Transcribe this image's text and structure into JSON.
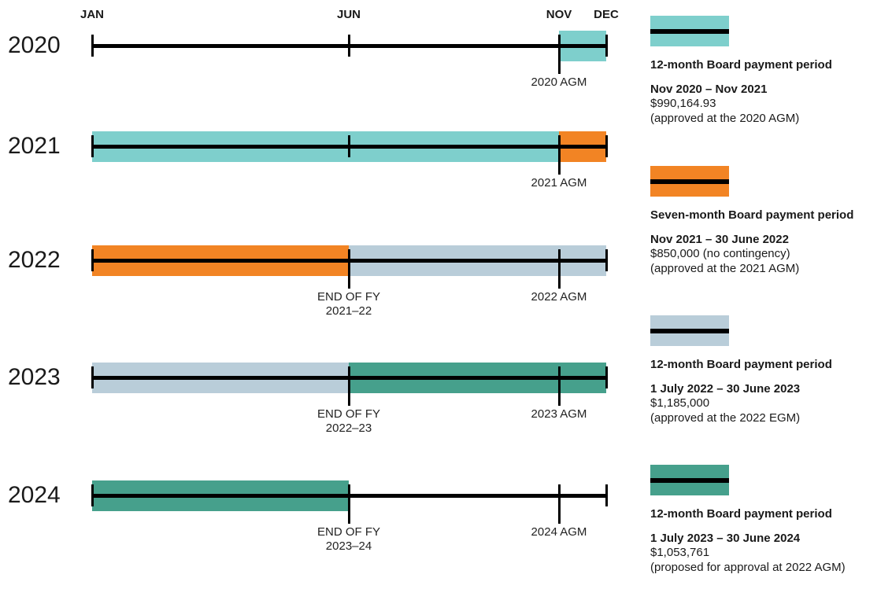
{
  "months": [
    "JAN",
    "JUN",
    "NOV",
    "DEC"
  ],
  "colors": {
    "teal": "#7ecfcc",
    "orange": "#f28424",
    "grey": "#b9cdd9",
    "green": "#46a08c"
  },
  "rows": [
    {
      "year": "2020",
      "segments": [
        {
          "from": "NOV",
          "to": "DEC",
          "color": "teal"
        }
      ],
      "markers": [
        {
          "at": "JUN",
          "label": ""
        },
        {
          "at": "NOV",
          "label": "2020 AGM"
        }
      ]
    },
    {
      "year": "2021",
      "segments": [
        {
          "from": "JAN",
          "to": "NOV",
          "color": "teal"
        },
        {
          "from": "NOV",
          "to": "DEC",
          "color": "orange"
        }
      ],
      "markers": [
        {
          "at": "JUN",
          "label": ""
        },
        {
          "at": "NOV",
          "label": "2021 AGM"
        }
      ]
    },
    {
      "year": "2022",
      "segments": [
        {
          "from": "JAN",
          "to": "JUN",
          "color": "orange"
        },
        {
          "from": "JUN",
          "to": "DEC",
          "color": "grey"
        }
      ],
      "markers": [
        {
          "at": "JUN",
          "label": "END OF FY\n2021–22"
        },
        {
          "at": "NOV",
          "label": "2022 AGM"
        }
      ]
    },
    {
      "year": "2023",
      "segments": [
        {
          "from": "JAN",
          "to": "JUN",
          "color": "grey"
        },
        {
          "from": "JUN",
          "to": "DEC",
          "color": "green"
        }
      ],
      "markers": [
        {
          "at": "JUN",
          "label": "END OF FY\n2022–23"
        },
        {
          "at": "NOV",
          "label": "2023 AGM"
        }
      ]
    },
    {
      "year": "2024",
      "segments": [
        {
          "from": "JAN",
          "to": "JUN",
          "color": "green"
        }
      ],
      "markers": [
        {
          "at": "JUN",
          "label": "END OF FY\n2023–24"
        },
        {
          "at": "NOV",
          "label": "2024 AGM"
        }
      ]
    }
  ],
  "legend": [
    {
      "color": "teal",
      "heading": "12-month Board payment period",
      "range": "Nov 2020 – Nov 2021",
      "lines": [
        "$990,164.93",
        "(approved at the 2020 AGM)"
      ]
    },
    {
      "color": "orange",
      "heading": "Seven-month Board payment period",
      "range": "Nov 2021 – 30 June 2022",
      "lines": [
        "$850,000 (no contingency)",
        "(approved at the 2021 AGM)"
      ]
    },
    {
      "color": "grey",
      "heading": "12-month Board payment period",
      "range": "1 July 2022 – 30 June 2023",
      "lines": [
        "$1,185,000",
        "(approved at the 2022 EGM)"
      ]
    },
    {
      "color": "green",
      "heading": "12-month Board payment period",
      "range": "1 July 2023 – 30 June 2024",
      "lines": [
        "$1,053,761",
        "(proposed for approval at 2022 AGM)"
      ]
    }
  ]
}
